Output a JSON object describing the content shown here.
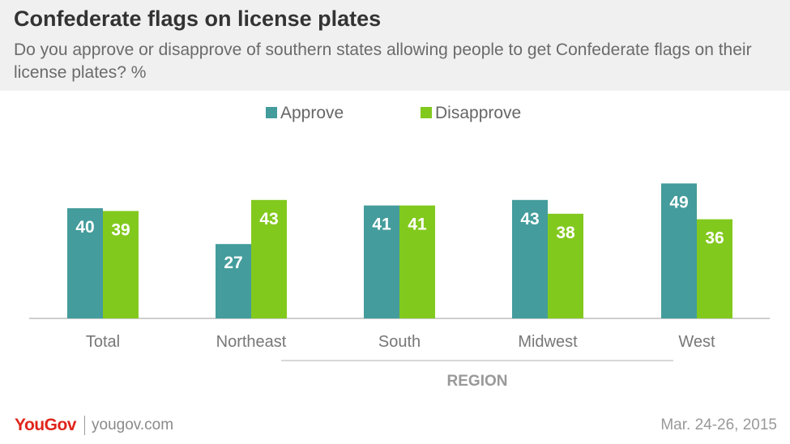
{
  "header": {
    "title": "Confederate flags on license plates",
    "subtitle": "Do you approve or disapprove of southern states allowing people to get Confederate flags on their license plates? %"
  },
  "colors": {
    "approve": "#449c9c",
    "disapprove": "#82c91e",
    "header_bg": "#f0f0f0",
    "brand": "#e0251b"
  },
  "chart_data": {
    "type": "bar",
    "categories": [
      "Total",
      "Northeast",
      "South",
      "Midwest",
      "West"
    ],
    "series": [
      {
        "name": "Approve",
        "values": [
          40,
          27,
          41,
          43,
          49
        ]
      },
      {
        "name": "Disapprove",
        "values": [
          39,
          43,
          41,
          38,
          36
        ]
      }
    ],
    "group_label": "REGION",
    "ylim": [
      0,
      55
    ],
    "legend_position": "top-center",
    "grid": false
  },
  "footer": {
    "logo": "YouGov",
    "url": "yougov.com",
    "date": "Mar. 24-26, 2015"
  }
}
